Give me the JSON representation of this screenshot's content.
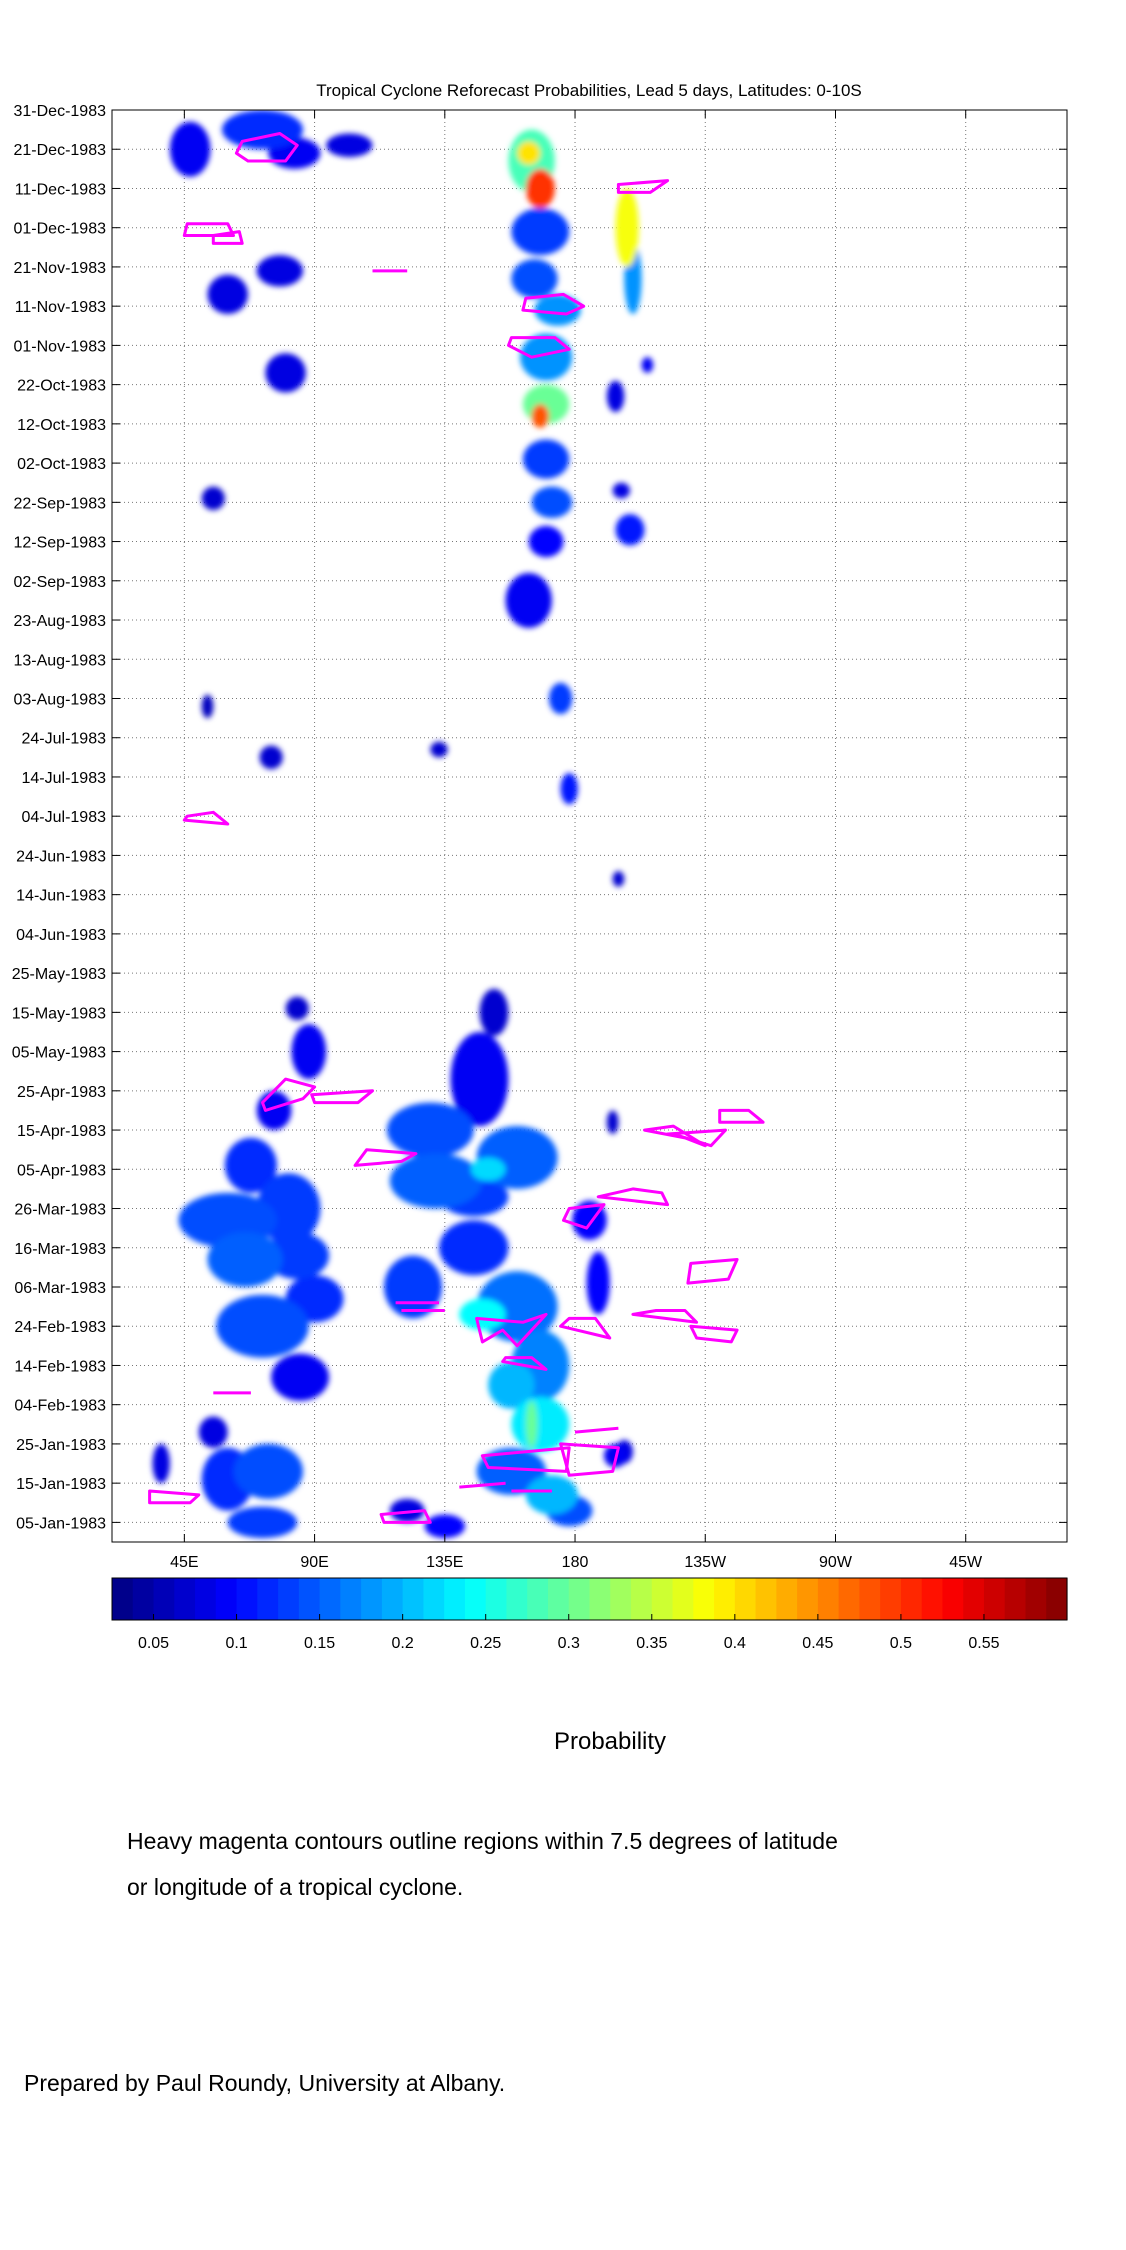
{
  "chart_data": {
    "type": "heatmap",
    "title": "Tropical Cyclone Reforecast Probabilities, Lead 5 days, Latitudes: 0-10S",
    "xlabel": "",
    "ylabel": "",
    "x_ticks": [
      {
        "lon": 45,
        "label": "45E"
      },
      {
        "lon": 90,
        "label": "90E"
      },
      {
        "lon": 135,
        "label": "135E"
      },
      {
        "lon": 180,
        "label": "180"
      },
      {
        "lon": 225,
        "label": "135W"
      },
      {
        "lon": 270,
        "label": "90W"
      },
      {
        "lon": 315,
        "label": "45W"
      }
    ],
    "xlim": [
      20,
      350
    ],
    "y_ticks": [
      {
        "day": 5,
        "label": "05-Jan-1983"
      },
      {
        "day": 15,
        "label": "15-Jan-1983"
      },
      {
        "day": 25,
        "label": "25-Jan-1983"
      },
      {
        "day": 35,
        "label": "04-Feb-1983"
      },
      {
        "day": 45,
        "label": "14-Feb-1983"
      },
      {
        "day": 55,
        "label": "24-Feb-1983"
      },
      {
        "day": 65,
        "label": "06-Mar-1983"
      },
      {
        "day": 75,
        "label": "16-Mar-1983"
      },
      {
        "day": 85,
        "label": "26-Mar-1983"
      },
      {
        "day": 95,
        "label": "05-Apr-1983"
      },
      {
        "day": 105,
        "label": "15-Apr-1983"
      },
      {
        "day": 115,
        "label": "25-Apr-1983"
      },
      {
        "day": 125,
        "label": "05-May-1983"
      },
      {
        "day": 135,
        "label": "15-May-1983"
      },
      {
        "day": 145,
        "label": "25-May-1983"
      },
      {
        "day": 155,
        "label": "04-Jun-1983"
      },
      {
        "day": 165,
        "label": "14-Jun-1983"
      },
      {
        "day": 175,
        "label": "24-Jun-1983"
      },
      {
        "day": 185,
        "label": "04-Jul-1983"
      },
      {
        "day": 195,
        "label": "14-Jul-1983"
      },
      {
        "day": 205,
        "label": "24-Jul-1983"
      },
      {
        "day": 215,
        "label": "03-Aug-1983"
      },
      {
        "day": 225,
        "label": "13-Aug-1983"
      },
      {
        "day": 235,
        "label": "23-Aug-1983"
      },
      {
        "day": 245,
        "label": "02-Sep-1983"
      },
      {
        "day": 255,
        "label": "12-Sep-1983"
      },
      {
        "day": 265,
        "label": "22-Sep-1983"
      },
      {
        "day": 275,
        "label": "02-Oct-1983"
      },
      {
        "day": 285,
        "label": "12-Oct-1983"
      },
      {
        "day": 295,
        "label": "22-Oct-1983"
      },
      {
        "day": 305,
        "label": "01-Nov-1983"
      },
      {
        "day": 315,
        "label": "11-Nov-1983"
      },
      {
        "day": 325,
        "label": "21-Nov-1983"
      },
      {
        "day": 335,
        "label": "01-Dec-1983"
      },
      {
        "day": 345,
        "label": "11-Dec-1983"
      },
      {
        "day": 355,
        "label": "21-Dec-1983"
      },
      {
        "day": 365,
        "label": "31-Dec-1983"
      }
    ],
    "ylim": [
      0,
      365
    ],
    "grid": true,
    "colorbar": {
      "label": "Probability",
      "range": [
        0.025,
        0.6
      ],
      "ticks": [
        0.05,
        0.1,
        0.15,
        0.2,
        0.25,
        0.3,
        0.35,
        0.4,
        0.45,
        0.5,
        0.55
      ],
      "tick_labels": [
        "0.05",
        "0.1",
        "0.15",
        "0.2",
        "0.25",
        "0.3",
        "0.35",
        "0.4",
        "0.45",
        "0.5",
        "0.55"
      ],
      "colormap": "jet"
    },
    "blobs": [
      {
        "lon": 72,
        "day": 5,
        "rx": 12,
        "ry": 4,
        "p": 0.13
      },
      {
        "lon": 60,
        "day": 16,
        "rx": 9,
        "ry": 8,
        "p": 0.12
      },
      {
        "lon": 74,
        "day": 18,
        "rx": 12,
        "ry": 7,
        "p": 0.14
      },
      {
        "lon": 55,
        "day": 28,
        "rx": 5,
        "ry": 4,
        "p": 0.08
      },
      {
        "lon": 37,
        "day": 20,
        "rx": 3,
        "ry": 5,
        "p": 0.08
      },
      {
        "lon": 122,
        "day": 8,
        "rx": 6,
        "ry": 3,
        "p": 0.08
      },
      {
        "lon": 85,
        "day": 42,
        "rx": 10,
        "ry": 6,
        "p": 0.09
      },
      {
        "lon": 72,
        "day": 55,
        "rx": 16,
        "ry": 8,
        "p": 0.14
      },
      {
        "lon": 90,
        "day": 62,
        "rx": 10,
        "ry": 6,
        "p": 0.12
      },
      {
        "lon": 66,
        "day": 72,
        "rx": 13,
        "ry": 7,
        "p": 0.15
      },
      {
        "lon": 84,
        "day": 73,
        "rx": 11,
        "ry": 6,
        "p": 0.13
      },
      {
        "lon": 60,
        "day": 82,
        "rx": 17,
        "ry": 7,
        "p": 0.14
      },
      {
        "lon": 81,
        "day": 85,
        "rx": 11,
        "ry": 9,
        "p": 0.13
      },
      {
        "lon": 68,
        "day": 96,
        "rx": 9,
        "ry": 7,
        "p": 0.12
      },
      {
        "lon": 76,
        "day": 110,
        "rx": 6,
        "ry": 5,
        "p": 0.09
      },
      {
        "lon": 88,
        "day": 125,
        "rx": 6,
        "ry": 7,
        "p": 0.09
      },
      {
        "lon": 84,
        "day": 136,
        "rx": 4,
        "ry": 3,
        "p": 0.07
      },
      {
        "lon": 130,
        "day": 105,
        "rx": 15,
        "ry": 7,
        "p": 0.14
      },
      {
        "lon": 132,
        "day": 92,
        "rx": 16,
        "ry": 7,
        "p": 0.15
      },
      {
        "lon": 145,
        "day": 88,
        "rx": 12,
        "ry": 5,
        "p": 0.13
      },
      {
        "lon": 160,
        "day": 98,
        "rx": 14,
        "ry": 8,
        "p": 0.15
      },
      {
        "lon": 150,
        "day": 95,
        "rx": 6,
        "ry": 3,
        "p": 0.22
      },
      {
        "lon": 147,
        "day": 118,
        "rx": 10,
        "ry": 12,
        "p": 0.09
      },
      {
        "lon": 152,
        "day": 135,
        "rx": 5,
        "ry": 6,
        "p": 0.07
      },
      {
        "lon": 124,
        "day": 65,
        "rx": 10,
        "ry": 8,
        "p": 0.13
      },
      {
        "lon": 145,
        "day": 75,
        "rx": 12,
        "ry": 7,
        "p": 0.12
      },
      {
        "lon": 160,
        "day": 60,
        "rx": 14,
        "ry": 9,
        "p": 0.16
      },
      {
        "lon": 148,
        "day": 58,
        "rx": 8,
        "ry": 4,
        "p": 0.24
      },
      {
        "lon": 168,
        "day": 45,
        "rx": 10,
        "ry": 9,
        "p": 0.17
      },
      {
        "lon": 158,
        "day": 40,
        "rx": 8,
        "ry": 6,
        "p": 0.2
      },
      {
        "lon": 168,
        "day": 30,
        "rx": 10,
        "ry": 7,
        "p": 0.23
      },
      {
        "lon": 165,
        "day": 30,
        "rx": 2,
        "ry": 6,
        "p": 0.3
      },
      {
        "lon": 158,
        "day": 18,
        "rx": 12,
        "ry": 6,
        "p": 0.15
      },
      {
        "lon": 172,
        "day": 12,
        "rx": 9,
        "ry": 5,
        "p": 0.2
      },
      {
        "lon": 178,
        "day": 8,
        "rx": 8,
        "ry": 4,
        "p": 0.14
      },
      {
        "lon": 188,
        "day": 66,
        "rx": 4,
        "ry": 8,
        "p": 0.1
      },
      {
        "lon": 185,
        "day": 82,
        "rx": 6,
        "ry": 5,
        "p": 0.1
      },
      {
        "lon": 194,
        "day": 22,
        "rx": 4,
        "ry": 3,
        "p": 0.09
      },
      {
        "lon": 135,
        "day": 4,
        "rx": 7,
        "ry": 3,
        "p": 0.1
      },
      {
        "lon": 47,
        "day": 355,
        "rx": 7,
        "ry": 7,
        "p": 0.09
      },
      {
        "lon": 72,
        "day": 360,
        "rx": 14,
        "ry": 5,
        "p": 0.12
      },
      {
        "lon": 83,
        "day": 354,
        "rx": 9,
        "ry": 4,
        "p": 0.09
      },
      {
        "lon": 102,
        "day": 356,
        "rx": 8,
        "ry": 3,
        "p": 0.08
      },
      {
        "lon": 60,
        "day": 318,
        "rx": 7,
        "ry": 5,
        "p": 0.08
      },
      {
        "lon": 78,
        "day": 324,
        "rx": 8,
        "ry": 4,
        "p": 0.08
      },
      {
        "lon": 80,
        "day": 298,
        "rx": 7,
        "ry": 5,
        "p": 0.08
      },
      {
        "lon": 55,
        "day": 266,
        "rx": 4,
        "ry": 3,
        "p": 0.07
      },
      {
        "lon": 75,
        "day": 200,
        "rx": 4,
        "ry": 3,
        "p": 0.07
      },
      {
        "lon": 53,
        "day": 213,
        "rx": 2,
        "ry": 3,
        "p": 0.06
      },
      {
        "lon": 165,
        "day": 352,
        "rx": 8,
        "ry": 8,
        "p": 0.28
      },
      {
        "lon": 168,
        "day": 345,
        "rx": 5,
        "ry": 5,
        "p": 0.5
      },
      {
        "lon": 164,
        "day": 354,
        "rx": 4,
        "ry": 3,
        "p": 0.4
      },
      {
        "lon": 168,
        "day": 334,
        "rx": 10,
        "ry": 6,
        "p": 0.13
      },
      {
        "lon": 166,
        "day": 322,
        "rx": 8,
        "ry": 5,
        "p": 0.14
      },
      {
        "lon": 174,
        "day": 314,
        "rx": 8,
        "ry": 4,
        "p": 0.18
      },
      {
        "lon": 170,
        "day": 302,
        "rx": 9,
        "ry": 6,
        "p": 0.18
      },
      {
        "lon": 170,
        "day": 290,
        "rx": 8,
        "ry": 5,
        "p": 0.3
      },
      {
        "lon": 168,
        "day": 287,
        "rx": 3,
        "ry": 3,
        "p": 0.48
      },
      {
        "lon": 170,
        "day": 276,
        "rx": 8,
        "ry": 5,
        "p": 0.13
      },
      {
        "lon": 172,
        "day": 265,
        "rx": 7,
        "ry": 4,
        "p": 0.14
      },
      {
        "lon": 170,
        "day": 255,
        "rx": 6,
        "ry": 4,
        "p": 0.1
      },
      {
        "lon": 164,
        "day": 240,
        "rx": 8,
        "ry": 7,
        "p": 0.09
      },
      {
        "lon": 175,
        "day": 215,
        "rx": 4,
        "ry": 4,
        "p": 0.13
      },
      {
        "lon": 178,
        "day": 192,
        "rx": 3,
        "ry": 4,
        "p": 0.11
      },
      {
        "lon": 198,
        "day": 335,
        "rx": 4,
        "ry": 10,
        "p": 0.38
      },
      {
        "lon": 200,
        "day": 322,
        "rx": 3,
        "ry": 9,
        "p": 0.18
      },
      {
        "lon": 194,
        "day": 292,
        "rx": 3,
        "ry": 4,
        "p": 0.08
      },
      {
        "lon": 199,
        "day": 258,
        "rx": 5,
        "ry": 4,
        "p": 0.11
      },
      {
        "lon": 205,
        "day": 300,
        "rx": 2,
        "ry": 2,
        "p": 0.09
      },
      {
        "lon": 196,
        "day": 268,
        "rx": 3,
        "ry": 2,
        "p": 0.08
      },
      {
        "lon": 133,
        "day": 202,
        "rx": 3,
        "ry": 2,
        "p": 0.07
      },
      {
        "lon": 195,
        "day": 169,
        "rx": 2,
        "ry": 2,
        "p": 0.07
      },
      {
        "lon": 193,
        "day": 107,
        "rx": 2,
        "ry": 3,
        "p": 0.07
      },
      {
        "lon": 197,
        "day": 23,
        "rx": 3,
        "ry": 3,
        "p": 0.08
      }
    ],
    "contours": [
      [
        [
          65,
          357
        ],
        [
          78,
          359
        ],
        [
          84,
          356
        ],
        [
          80,
          352
        ],
        [
          67,
          352
        ],
        [
          63,
          354
        ]
      ],
      [
        [
          45,
          333
        ],
        [
          62,
          333
        ],
        [
          60,
          336
        ],
        [
          46,
          336
        ]
      ],
      [
        [
          55,
          331
        ],
        [
          65,
          331
        ],
        [
          64,
          334
        ],
        [
          55,
          333
        ]
      ],
      [
        [
          110,
          324
        ],
        [
          122,
          324
        ]
      ],
      [
        [
          162,
          314
        ],
        [
          177,
          313
        ],
        [
          183,
          315
        ],
        [
          176,
          318
        ],
        [
          163,
          317
        ]
      ],
      [
        [
          158,
          307
        ],
        [
          173,
          307
        ],
        [
          178,
          304
        ],
        [
          165,
          302
        ],
        [
          157,
          305
        ]
      ],
      [
        [
          195,
          346
        ],
        [
          212,
          347
        ],
        [
          206,
          344
        ],
        [
          195,
          344
        ]
      ],
      [
        [
          45,
          184
        ],
        [
          60,
          183
        ],
        [
          55,
          186
        ],
        [
          46,
          185
        ]
      ],
      [
        [
          73,
          110
        ],
        [
          86,
          113
        ],
        [
          90,
          116
        ],
        [
          80,
          118
        ],
        [
          72,
          112
        ]
      ],
      [
        [
          89,
          114
        ],
        [
          110,
          115
        ],
        [
          105,
          112
        ],
        [
          90,
          112
        ]
      ],
      [
        [
          104,
          96
        ],
        [
          120,
          97
        ],
        [
          125,
          99
        ],
        [
          108,
          100
        ]
      ],
      [
        [
          204,
          105
        ],
        [
          218,
          103
        ],
        [
          225,
          101
        ],
        [
          214,
          106
        ]
      ],
      [
        [
          212,
          104
        ],
        [
          232,
          105
        ],
        [
          227,
          101
        ],
        [
          214,
          104
        ]
      ],
      [
        [
          230,
          107
        ],
        [
          245,
          107
        ],
        [
          240,
          110
        ],
        [
          230,
          110
        ]
      ],
      [
        [
          188,
          88
        ],
        [
          212,
          86
        ],
        [
          210,
          89
        ],
        [
          200,
          90
        ]
      ],
      [
        [
          178,
          85
        ],
        [
          190,
          86
        ],
        [
          184,
          80
        ],
        [
          176,
          82
        ]
      ],
      [
        [
          220,
          71
        ],
        [
          236,
          72
        ],
        [
          233,
          67
        ],
        [
          219,
          66
        ]
      ],
      [
        [
          200,
          58
        ],
        [
          222,
          56
        ],
        [
          218,
          59
        ],
        [
          208,
          59
        ]
      ],
      [
        [
          220,
          55
        ],
        [
          236,
          54
        ],
        [
          234,
          51
        ],
        [
          222,
          52
        ]
      ],
      [
        [
          146,
          57
        ],
        [
          162,
          56
        ],
        [
          170,
          58
        ],
        [
          160,
          50
        ],
        [
          155,
          54
        ],
        [
          148,
          51
        ]
      ],
      [
        [
          155,
          46
        ],
        [
          170,
          44
        ],
        [
          165,
          47
        ],
        [
          156,
          47
        ]
      ],
      [
        [
          175,
          55
        ],
        [
          192,
          52
        ],
        [
          187,
          57
        ],
        [
          178,
          57
        ]
      ],
      [
        [
          118,
          61
        ],
        [
          133,
          61
        ]
      ],
      [
        [
          120,
          59
        ],
        [
          135,
          59
        ]
      ],
      [
        [
          55,
          38
        ],
        [
          68,
          38
        ]
      ],
      [
        [
          148,
          22
        ],
        [
          178,
          24
        ],
        [
          177,
          18
        ],
        [
          150,
          19
        ]
      ],
      [
        [
          175,
          25
        ],
        [
          195,
          24
        ],
        [
          193,
          18
        ],
        [
          178,
          17
        ]
      ],
      [
        [
          180,
          28
        ],
        [
          195,
          29
        ]
      ],
      [
        [
          140,
          14
        ],
        [
          156,
          15
        ]
      ],
      [
        [
          33,
          13
        ],
        [
          50,
          12
        ],
        [
          47,
          10
        ],
        [
          33,
          10
        ]
      ],
      [
        [
          114,
          5
        ],
        [
          130,
          5
        ],
        [
          128,
          8
        ],
        [
          113,
          7
        ]
      ],
      [
        [
          158,
          13
        ],
        [
          172,
          13
        ]
      ]
    ]
  },
  "caption": {
    "colorbar_label": "Probability",
    "note_line1": "Heavy magenta contours outline regions within 7.5 degrees of latitude",
    "note_line2": "or longitude of a tropical cyclone.",
    "credit": "Prepared by Paul Roundy, University at Albany."
  }
}
